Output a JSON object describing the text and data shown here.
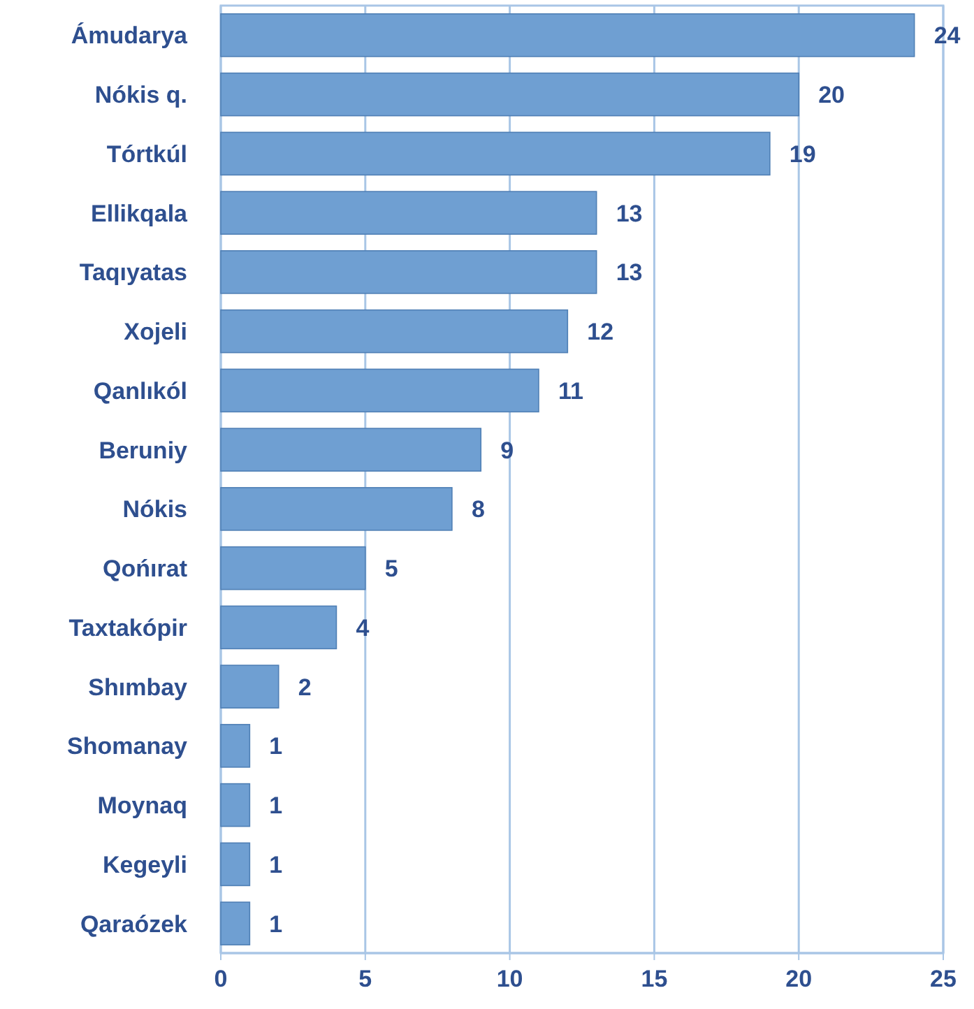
{
  "chart_data": {
    "type": "bar",
    "orientation": "horizontal",
    "categories": [
      "Ámudarya",
      "Nókis q.",
      "Tórtkúl",
      "Ellikqala",
      "Taqıyatas",
      "Xojeli",
      "Qanlıkól",
      "Beruniy",
      "Nókis",
      "Qońırat",
      "Taxtakópir",
      "Shımbay",
      "Shomanay",
      "Moynaq",
      "Kegeyli",
      "Qaraózek"
    ],
    "values": [
      24,
      20,
      19,
      13,
      13,
      12,
      11,
      9,
      8,
      5,
      4,
      2,
      1,
      1,
      1,
      1
    ],
    "color": "#6f9fd2",
    "xlim": [
      0,
      25
    ],
    "xticks": [
      0,
      5,
      10,
      15,
      20,
      25
    ],
    "grid": "x",
    "data_labels": true
  }
}
